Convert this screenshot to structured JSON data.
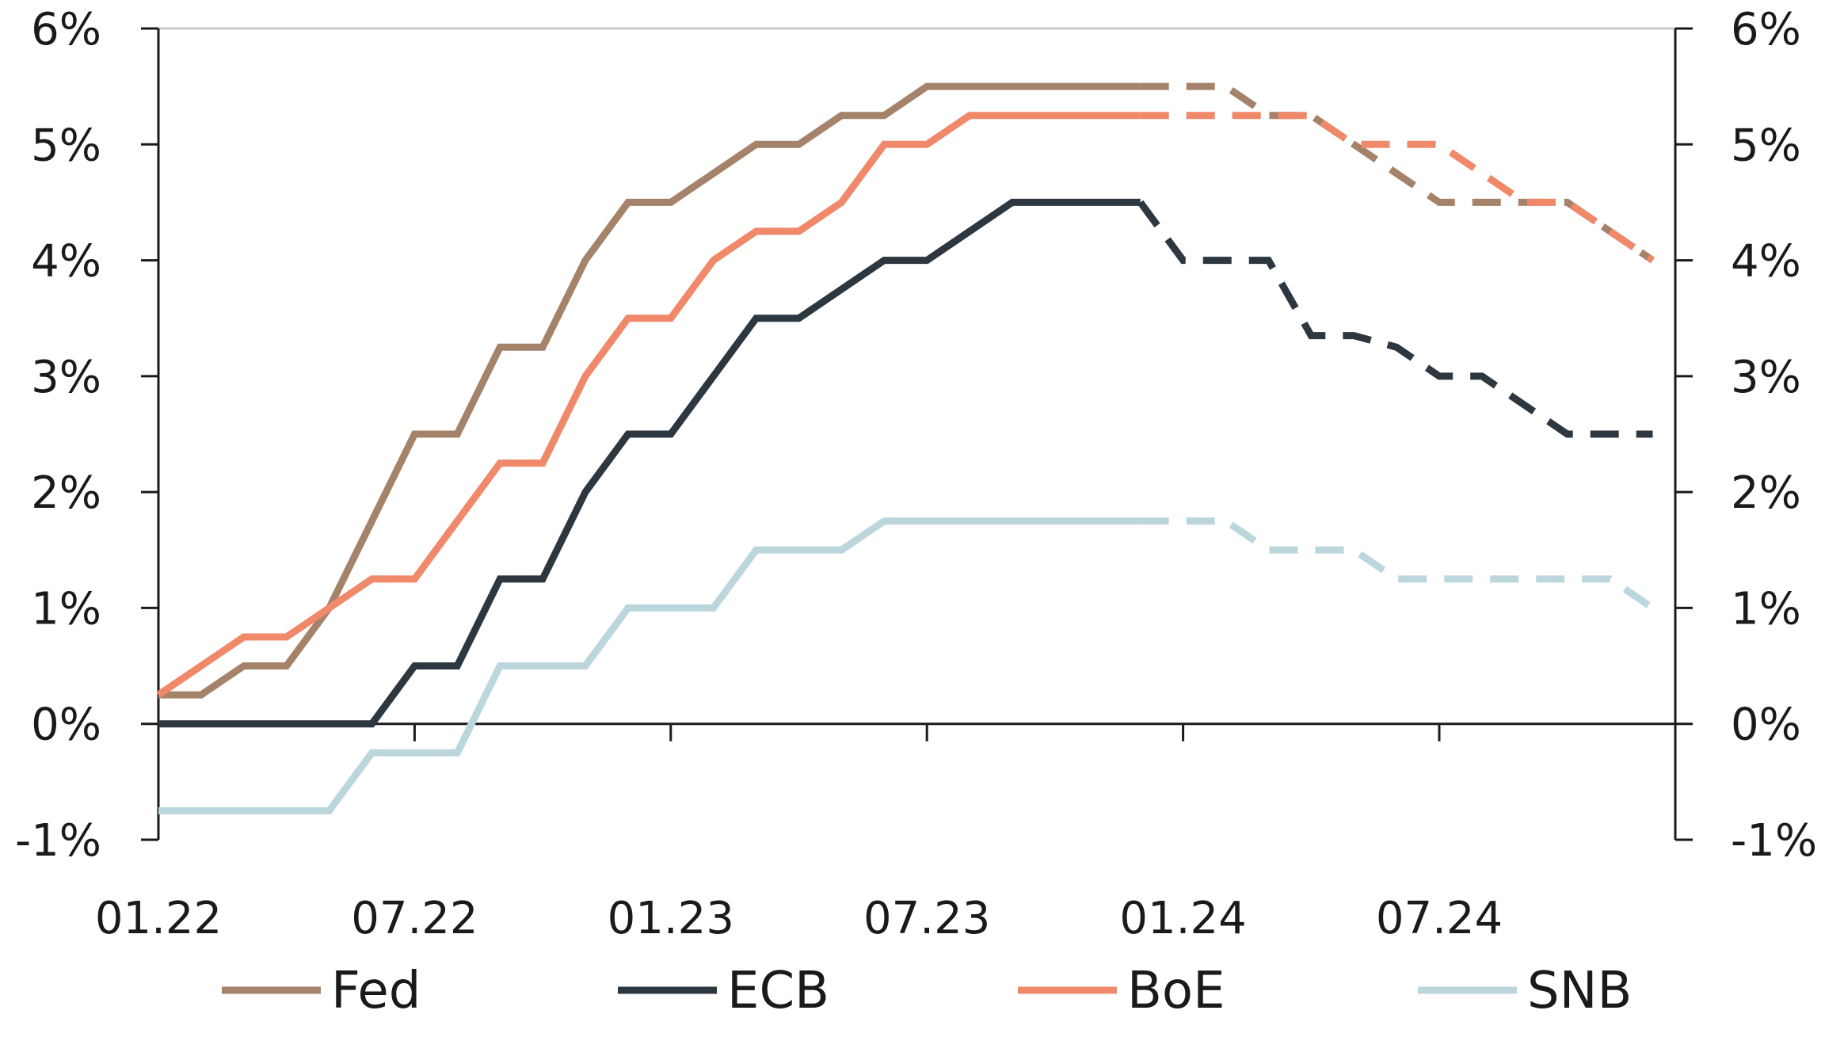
{
  "chart_data": {
    "type": "line",
    "x_dates": [
      "01.22",
      "02.22",
      "03.22",
      "04.22",
      "05.22",
      "06.22",
      "07.22",
      "08.22",
      "09.22",
      "10.22",
      "11.22",
      "12.22",
      "01.23",
      "02.23",
      "03.23",
      "04.23",
      "05.23",
      "06.23",
      "07.23",
      "08.23",
      "09.23",
      "10.23",
      "11.23",
      "12.23",
      "01.24",
      "02.24",
      "03.24",
      "04.24",
      "05.24",
      "06.24",
      "07.24",
      "08.24",
      "09.24",
      "10.24",
      "11.24",
      "12.24"
    ],
    "x_tick_labels": [
      "01.22",
      "07.22",
      "01.23",
      "07.23",
      "01.24",
      "07.24"
    ],
    "y_ticks": [
      -1,
      0,
      1,
      2,
      3,
      4,
      5,
      6
    ],
    "y_tick_labels": [
      "-1%",
      "0%",
      "1%",
      "2%",
      "3%",
      "4%",
      "5%",
      "6%"
    ],
    "ylim": [
      -1,
      6
    ],
    "forecast_from": "12.23",
    "grid": false,
    "legend_position": "bottom",
    "series": [
      {
        "name": "Fed",
        "color": "#a5836a",
        "values": [
          0.25,
          0.25,
          0.5,
          0.5,
          1.0,
          1.75,
          2.5,
          2.5,
          3.25,
          3.25,
          4.0,
          4.5,
          4.5,
          4.75,
          5.0,
          5.0,
          5.25,
          5.25,
          5.5,
          5.5,
          5.5,
          5.5,
          5.5,
          5.5,
          5.5,
          5.5,
          5.25,
          5.25,
          5.0,
          4.75,
          4.5,
          4.5,
          4.5,
          4.5,
          4.25,
          4.0
        ]
      },
      {
        "name": "ECB",
        "color": "#2d3740",
        "values": [
          0,
          0,
          0,
          0,
          0,
          0,
          0.5,
          0.5,
          1.25,
          1.25,
          2.0,
          2.5,
          2.5,
          3.0,
          3.5,
          3.5,
          3.75,
          4.0,
          4.0,
          4.25,
          4.5,
          4.5,
          4.5,
          4.5,
          4.0,
          4.0,
          4.0,
          3.35,
          3.35,
          3.25,
          3.0,
          3.0,
          2.75,
          2.5,
          2.5,
          2.5
        ]
      },
      {
        "name": "BoE",
        "color": "#f0896a",
        "values": [
          0.25,
          0.5,
          0.75,
          0.75,
          1.0,
          1.25,
          1.25,
          1.75,
          2.25,
          2.25,
          3.0,
          3.5,
          3.5,
          4.0,
          4.25,
          4.25,
          4.5,
          5.0,
          5.0,
          5.25,
          5.25,
          5.25,
          5.25,
          5.25,
          5.25,
          5.25,
          5.25,
          5.25,
          5.0,
          5.0,
          5.0,
          4.75,
          4.5,
          4.5,
          4.25,
          4.0
        ]
      },
      {
        "name": "SNB",
        "color": "#bcd6dd",
        "values": [
          -0.75,
          -0.75,
          -0.75,
          -0.75,
          -0.75,
          -0.25,
          -0.25,
          -0.25,
          0.5,
          0.5,
          0.5,
          1.0,
          1.0,
          1.0,
          1.5,
          1.5,
          1.5,
          1.75,
          1.75,
          1.75,
          1.75,
          1.75,
          1.75,
          1.75,
          1.75,
          1.75,
          1.5,
          1.5,
          1.5,
          1.25,
          1.25,
          1.25,
          1.25,
          1.25,
          1.25,
          1.0
        ]
      }
    ]
  }
}
